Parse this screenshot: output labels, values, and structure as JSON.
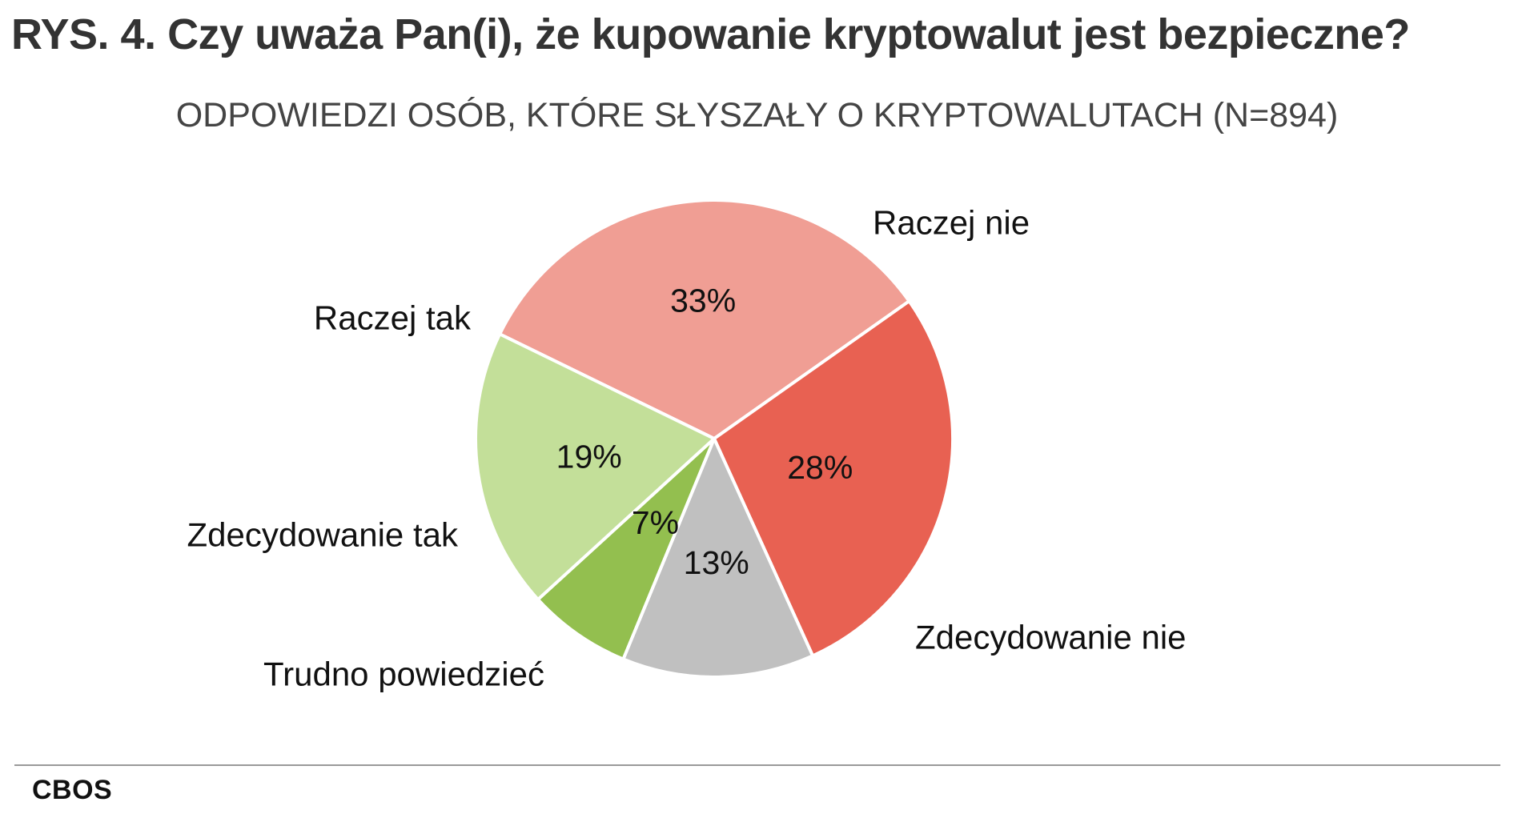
{
  "chart_data": {
    "type": "pie",
    "title": "RYS. 4. Czy uważa Pan(i), że kupowanie kryptowalut jest bezpieczne?",
    "subtitle": "ODPOWIEDZI OSÓB, KTÓRE SŁYSZAŁY O KRYPTOWALUTACH (N=894)",
    "slices": [
      {
        "label": "Raczej nie",
        "value": 33,
        "value_label": "33%",
        "color": "#f09e94"
      },
      {
        "label": "Zdecydowanie nie",
        "value": 28,
        "value_label": "28%",
        "color": "#e86152"
      },
      {
        "label": "Trudno powiedzieć",
        "value": 13,
        "value_label": "13%",
        "color": "#c0c0c0"
      },
      {
        "label": "Zdecydowanie tak",
        "value": 7,
        "value_label": "7%",
        "color": "#93bf4f"
      },
      {
        "label": "Raczej tak",
        "value": 19,
        "value_label": "19%",
        "color": "#c3df99"
      }
    ]
  },
  "footer": {
    "source": "CBOS"
  }
}
